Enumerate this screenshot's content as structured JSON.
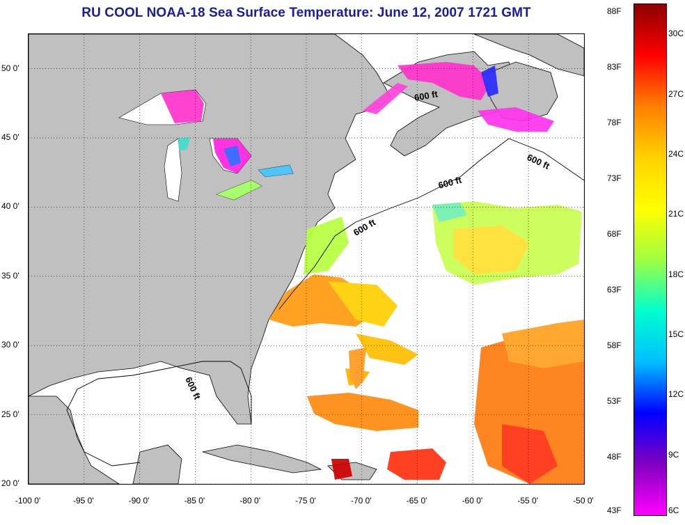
{
  "title": "RU COOL  NOAA-18  Sea Surface Temperature:  June 12, 2007 1721 GMT",
  "map": {
    "lon_range": [
      -100,
      -50
    ],
    "lat_range": [
      20,
      52.5
    ],
    "x_ticks": [
      {
        "lon": -100,
        "label": "-100 0'"
      },
      {
        "lon": -95,
        "label": "-95 0'"
      },
      {
        "lon": -90,
        "label": "-90 0'"
      },
      {
        "lon": -85,
        "label": "-85 0'"
      },
      {
        "lon": -80,
        "label": "-80 0'"
      },
      {
        "lon": -75,
        "label": "-75 0'"
      },
      {
        "lon": -70,
        "label": "-70 0'"
      },
      {
        "lon": -65,
        "label": "-65 0'"
      },
      {
        "lon": -60,
        "label": "-60 0'"
      },
      {
        "lon": -55,
        "label": "-55 0'"
      },
      {
        "lon": -50,
        "label": "-50 0'"
      }
    ],
    "y_ticks": [
      {
        "lat": 50,
        "label": "50 0'"
      },
      {
        "lat": 45,
        "label": "45 0'"
      },
      {
        "lat": 40,
        "label": "40 0'"
      },
      {
        "lat": 35,
        "label": "35 0'"
      },
      {
        "lat": 30,
        "label": "30 0'"
      },
      {
        "lat": 25,
        "label": "25 0'"
      },
      {
        "lat": 20,
        "label": "20 0'"
      }
    ],
    "grid": true,
    "contour_label": "600 ft",
    "land_color": "#c0c0c0",
    "water_no_data_color": "#ffffff"
  },
  "colorbar": {
    "fahrenheit_labels": [
      "88F",
      "83F",
      "78F",
      "73F",
      "68F",
      "63F",
      "58F",
      "53F",
      "48F",
      "43F"
    ],
    "celsius_labels": [
      "30C",
      "27C",
      "24C",
      "21C",
      "18C",
      "15C",
      "12C",
      "9C",
      "6C"
    ],
    "range_c": [
      6,
      31.5
    ],
    "colors_top_to_bottom": [
      "#8b0000",
      "#ff0000",
      "#ff8000",
      "#ffd200",
      "#ffff00",
      "#a0ff40",
      "#00ffd0",
      "#00c0ff",
      "#0000ff",
      "#8000c0",
      "#ff00ff"
    ]
  }
}
